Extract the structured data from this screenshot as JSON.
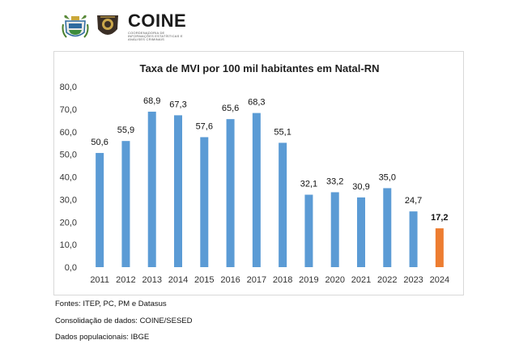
{
  "header": {
    "logos": [
      "state-coat-of-arms",
      "police-badge",
      "coine-logo"
    ],
    "coine_word": "COINE",
    "coine_subtitle": "COORDENADORIA DE INFORMAÇÕES ESTATÍSTICAS E ANÁLISES CRIMINAIS"
  },
  "chart_data": {
    "type": "bar",
    "title": "Taxa de MVI por 100 mil habitantes em Natal-RN",
    "xlabel": "",
    "ylabel": "",
    "categories": [
      "2011",
      "2012",
      "2013",
      "2014",
      "2015",
      "2016",
      "2017",
      "2018",
      "2019",
      "2020",
      "2021",
      "2022",
      "2023",
      "2024"
    ],
    "values": [
      50.6,
      55.9,
      68.9,
      67.3,
      57.6,
      65.6,
      68.3,
      55.1,
      32.1,
      33.2,
      30.9,
      35.0,
      24.7,
      17.2
    ],
    "value_labels": [
      "50,6",
      "55,9",
      "68,9",
      "67,3",
      "57,6",
      "65,6",
      "68,3",
      "55,1",
      "32,1",
      "33,2",
      "30,9",
      "35,0",
      "24,7",
      "17,2"
    ],
    "ylim": [
      0,
      80
    ],
    "yticks": [
      "0,0",
      "10,0",
      "20,0",
      "30,0",
      "40,0",
      "50,0",
      "60,0",
      "70,0",
      "80,0"
    ],
    "grid": false,
    "legend": "none",
    "colors": {
      "bar": "#5b9bd5",
      "highlight": "#ed7d31"
    },
    "highlight_index": 13
  },
  "notes": {
    "sources": "Fontes: ITEP, PC, PM e Datasus",
    "consolidation": "Consolidação de dados: COINE/SESED",
    "population": "Dados populacionais: IBGE"
  }
}
